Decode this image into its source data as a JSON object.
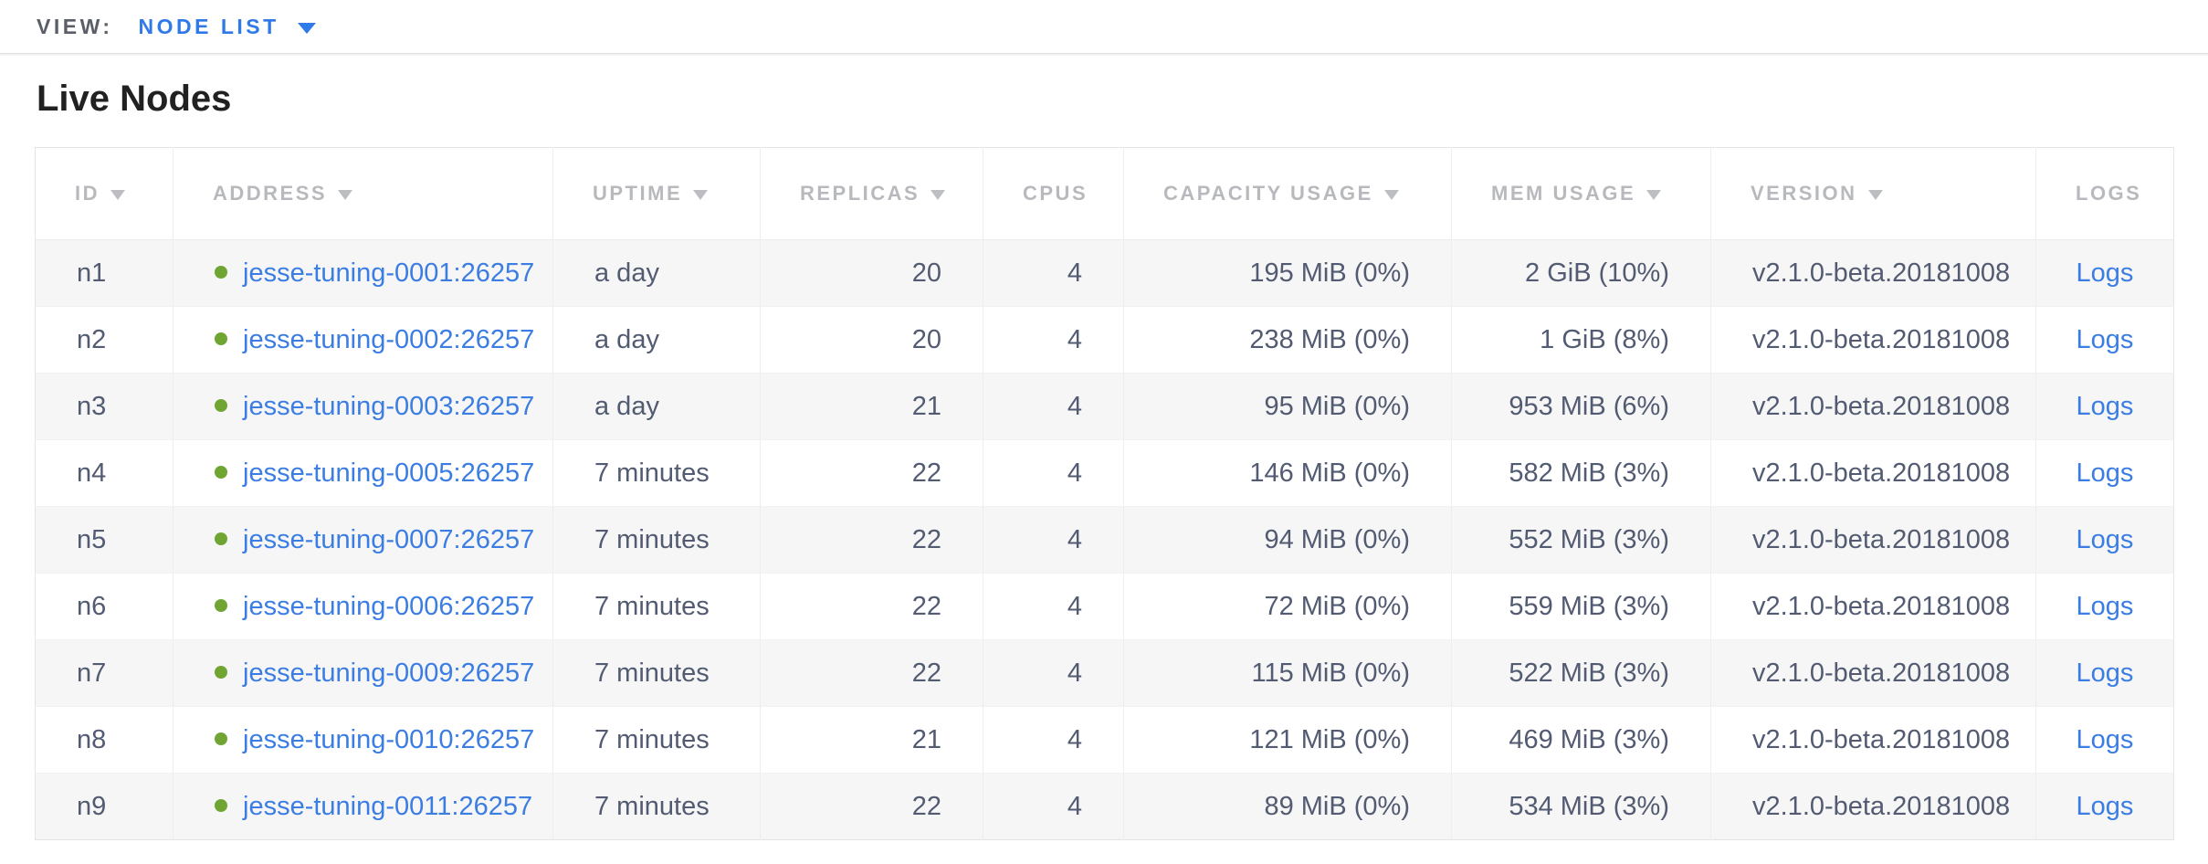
{
  "view_bar": {
    "label": "VIEW:",
    "selected": "NODE LIST"
  },
  "page": {
    "title": "Live Nodes"
  },
  "table": {
    "columns": [
      {
        "key": "id",
        "label": "ID",
        "sort_arrow": true
      },
      {
        "key": "address",
        "label": "ADDRESS",
        "sort_arrow": true
      },
      {
        "key": "uptime",
        "label": "UPTIME",
        "sort_arrow": true
      },
      {
        "key": "replicas",
        "label": "REPLICAS",
        "sort_arrow": true
      },
      {
        "key": "cpus",
        "label": "CPUS",
        "sort_arrow": false
      },
      {
        "key": "capacity",
        "label": "CAPACITY USAGE",
        "sort_arrow": true
      },
      {
        "key": "mem",
        "label": "MEM USAGE",
        "sort_arrow": true
      },
      {
        "key": "version",
        "label": "VERSION",
        "sort_arrow": true
      },
      {
        "key": "logs",
        "label": "LOGS",
        "sort_arrow": false
      }
    ],
    "rows": [
      {
        "id": "n1",
        "address": "jesse-tuning-0001:26257",
        "uptime": "a day",
        "replicas": "20",
        "cpus": "4",
        "capacity": "195 MiB (0%)",
        "mem": "2 GiB (10%)",
        "version": "v2.1.0-beta.20181008",
        "logs": "Logs"
      },
      {
        "id": "n2",
        "address": "jesse-tuning-0002:26257",
        "uptime": "a day",
        "replicas": "20",
        "cpus": "4",
        "capacity": "238 MiB (0%)",
        "mem": "1 GiB (8%)",
        "version": "v2.1.0-beta.20181008",
        "logs": "Logs"
      },
      {
        "id": "n3",
        "address": "jesse-tuning-0003:26257",
        "uptime": "a day",
        "replicas": "21",
        "cpus": "4",
        "capacity": "95 MiB (0%)",
        "mem": "953 MiB (6%)",
        "version": "v2.1.0-beta.20181008",
        "logs": "Logs"
      },
      {
        "id": "n4",
        "address": "jesse-tuning-0005:26257",
        "uptime": "7 minutes",
        "replicas": "22",
        "cpus": "4",
        "capacity": "146 MiB (0%)",
        "mem": "582 MiB (3%)",
        "version": "v2.1.0-beta.20181008",
        "logs": "Logs"
      },
      {
        "id": "n5",
        "address": "jesse-tuning-0007:26257",
        "uptime": "7 minutes",
        "replicas": "22",
        "cpus": "4",
        "capacity": "94 MiB (0%)",
        "mem": "552 MiB (3%)",
        "version": "v2.1.0-beta.20181008",
        "logs": "Logs"
      },
      {
        "id": "n6",
        "address": "jesse-tuning-0006:26257",
        "uptime": "7 minutes",
        "replicas": "22",
        "cpus": "4",
        "capacity": "72 MiB (0%)",
        "mem": "559 MiB (3%)",
        "version": "v2.1.0-beta.20181008",
        "logs": "Logs"
      },
      {
        "id": "n7",
        "address": "jesse-tuning-0009:26257",
        "uptime": "7 minutes",
        "replicas": "22",
        "cpus": "4",
        "capacity": "115 MiB (0%)",
        "mem": "522 MiB (3%)",
        "version": "v2.1.0-beta.20181008",
        "logs": "Logs"
      },
      {
        "id": "n8",
        "address": "jesse-tuning-0010:26257",
        "uptime": "7 minutes",
        "replicas": "21",
        "cpus": "4",
        "capacity": "121 MiB (0%)",
        "mem": "469 MiB (3%)",
        "version": "v2.1.0-beta.20181008",
        "logs": "Logs"
      },
      {
        "id": "n9",
        "address": "jesse-tuning-0011:26257",
        "uptime": "7 minutes",
        "replicas": "22",
        "cpus": "4",
        "capacity": "89 MiB (0%)",
        "mem": "534 MiB (3%)",
        "version": "v2.1.0-beta.20181008",
        "logs": "Logs"
      }
    ]
  },
  "icons": {
    "view_dropdown_caret": "chevron-down-icon",
    "sort_indicator": "sort-arrow-icon",
    "node_status": "node-live-status-icon"
  },
  "colors": {
    "accent_blue": "#2f79e8",
    "link_blue": "#3b7de2",
    "live_green": "#70a533",
    "cell_text": "#525b72",
    "header_text": "#b7b9bd"
  }
}
